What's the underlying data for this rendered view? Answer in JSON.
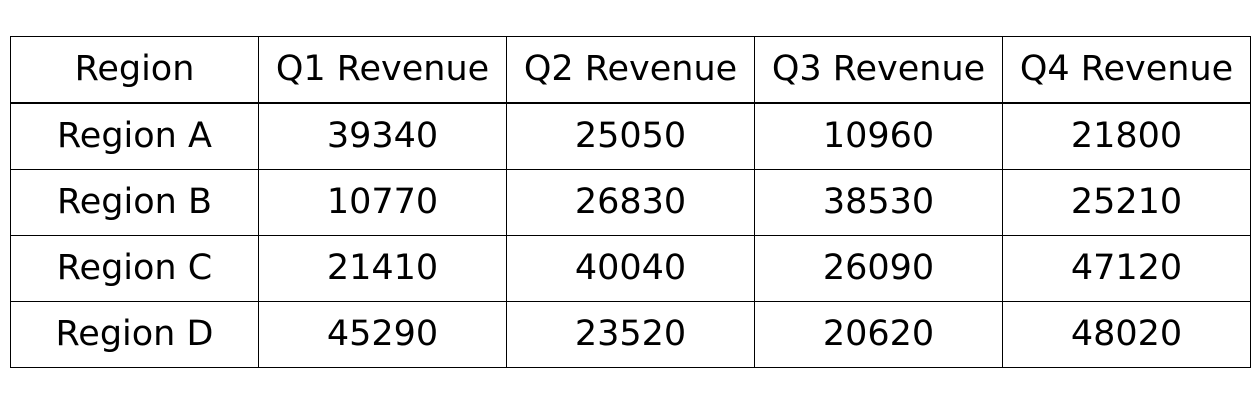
{
  "chart_data": {
    "type": "table",
    "title": "",
    "columns": [
      "Region",
      "Q1 Revenue",
      "Q2 Revenue",
      "Q3 Revenue",
      "Q4 Revenue"
    ],
    "rows": [
      [
        "Region A",
        "39340",
        "25050",
        "10960",
        "21800"
      ],
      [
        "Region B",
        "10770",
        "26830",
        "38530",
        "25210"
      ],
      [
        "Region C",
        "21410",
        "40040",
        "26090",
        "47120"
      ],
      [
        "Region D",
        "45290",
        "23520",
        "20620",
        "48020"
      ]
    ]
  }
}
